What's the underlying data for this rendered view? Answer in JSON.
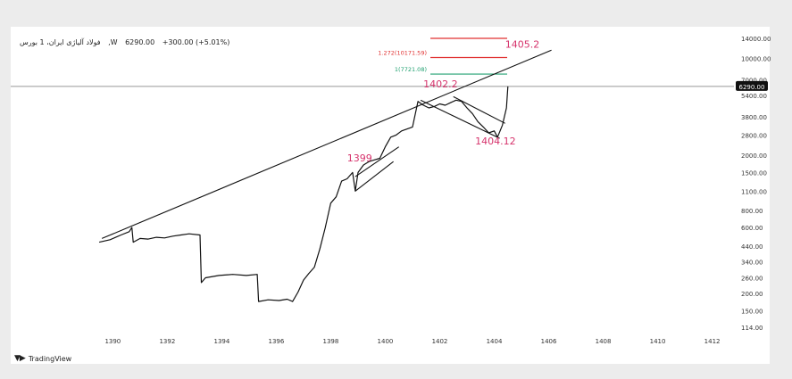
{
  "header": {
    "symbol": "فولاد آلیاژی ایران، 1",
    "market": "بورس ,W",
    "price": "6290.00",
    "change": "+300.00 (+5.01%)"
  },
  "footer": {
    "brand": "TradingView"
  },
  "colors": {
    "line": "#111111",
    "annotation": "#d6336c",
    "fib_red": "#e03131",
    "fib_green": "#20a070",
    "price_bg": "#111111"
  },
  "chart_data": {
    "type": "line",
    "scale": "log",
    "xlim": [
      1389.3,
      1412.8
    ],
    "ylim": [
      114,
      14000
    ],
    "x_ticks": [
      "1390",
      "1392",
      "1394",
      "1396",
      "1398",
      "1400",
      "1402",
      "1404",
      "1406",
      "1408",
      "1410",
      "1412"
    ],
    "y_ticks": [
      "14000.00",
      "10000.00",
      "7000.00",
      "5400.00",
      "3800.00",
      "2800.00",
      "2000.00",
      "1500.00",
      "1100.00",
      "800.00",
      "600.00",
      "440.00",
      "340.00",
      "260.00",
      "200.00",
      "150.00",
      "114.00"
    ],
    "last_price_label": "6290.00",
    "series": [
      {
        "x": [
          1389.5,
          1389.9,
          1390.3,
          1390.6,
          1390.7,
          1390.75,
          1391,
          1391.3,
          1391.6,
          1391.9,
          1392.2,
          1392.5,
          1392.8,
          1393.2,
          1393.25,
          1393.4,
          1393.9,
          1394.4,
          1394.9,
          1395.3,
          1395.35,
          1395.7,
          1396.1,
          1396.4,
          1396.6,
          1396.8,
          1397.0,
          1397.2,
          1397.4,
          1397.6,
          1397.8,
          1398.0,
          1398.2,
          1398.4,
          1398.6,
          1398.8,
          1398.9,
          1399.0,
          1399.2,
          1399.4,
          1399.6,
          1399.8,
          1400.0,
          1400.2,
          1400.4,
          1400.6,
          1401.0,
          1401.2,
          1401.4,
          1401.6,
          1401.8,
          1402.0,
          1402.2,
          1402.4,
          1402.6,
          1402.8,
          1403.0,
          1403.2,
          1403.4,
          1403.6,
          1403.8,
          1404.0,
          1404.12,
          1404.3,
          1404.45,
          1404.5
        ],
        "y": [
          470,
          490,
          530,
          560,
          600,
          470,
          500,
          495,
          510,
          505,
          520,
          530,
          540,
          530,
          240,
          260,
          270,
          275,
          270,
          275,
          175,
          180,
          178,
          182,
          175,
          205,
          250,
          280,
          310,
          420,
          600,
          900,
          1000,
          1300,
          1350,
          1500,
          1100,
          1500,
          1700,
          1800,
          1850,
          1900,
          2300,
          2700,
          2800,
          3000,
          3200,
          4900,
          4600,
          4400,
          4500,
          4700,
          4600,
          4800,
          5000,
          4900,
          4400,
          4000,
          3500,
          3200,
          2900,
          3000,
          2700,
          3300,
          4400,
          6290
        ]
      }
    ],
    "fib_levels": [
      {
        "label": "",
        "value": 14000
      },
      {
        "label": "1.272(10171.59)",
        "value": 10171.59
      },
      {
        "label": "1(7721.08)",
        "value": 7721.08
      }
    ],
    "annotations": [
      {
        "label": "1405.2",
        "x": 1404.4,
        "y": 12000
      },
      {
        "label": "1402.2",
        "x": 1401.4,
        "y": 6200
      },
      {
        "label": "1404.12",
        "x": 1403.3,
        "y": 2400
      },
      {
        "label": "1399",
        "x": 1398.6,
        "y": 1800
      }
    ]
  }
}
